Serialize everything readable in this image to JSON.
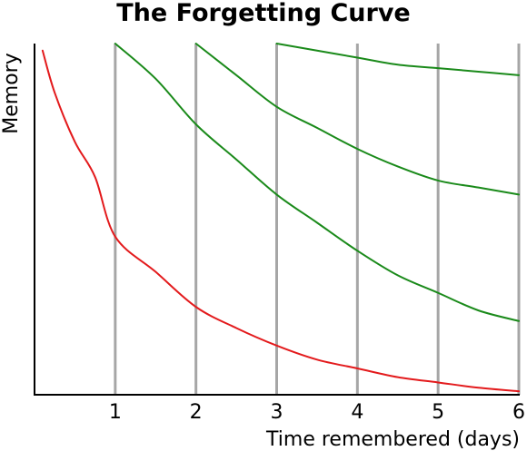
{
  "chart_data": {
    "type": "line",
    "title": "The Forgetting Curve",
    "xlabel": "Time remembered (days)",
    "ylabel": "Memory",
    "xlim": [
      0,
      6
    ],
    "ylim": [
      0,
      100
    ],
    "x_ticks": [
      "1",
      "2",
      "3",
      "4",
      "5",
      "6"
    ],
    "y_ticks": [],
    "grid": "vertical",
    "legend": "none",
    "colors": {
      "axis": "#000000",
      "gridline": "#a6a6a6",
      "first_curve": "#e31a1c",
      "review_curves": "#1a8a1a"
    },
    "series": [
      {
        "color": "#e31a1c",
        "points": [
          [
            0.1,
            98
          ],
          [
            0.25,
            86
          ],
          [
            0.5,
            72
          ],
          [
            0.75,
            62
          ],
          [
            1,
            45
          ],
          [
            1.5,
            35
          ],
          [
            2,
            25
          ],
          [
            2.5,
            19
          ],
          [
            3,
            14
          ],
          [
            3.5,
            10
          ],
          [
            4,
            7.5
          ],
          [
            4.5,
            5
          ],
          [
            5,
            3.5
          ],
          [
            5.5,
            2
          ],
          [
            6,
            1
          ]
        ]
      },
      {
        "color": "#1a8a1a",
        "points": [
          [
            1,
            100
          ],
          [
            1.5,
            90
          ],
          [
            2,
            77
          ],
          [
            2.5,
            67
          ],
          [
            3,
            57
          ],
          [
            3.5,
            49
          ],
          [
            4,
            41
          ],
          [
            4.5,
            34
          ],
          [
            5,
            29
          ],
          [
            5.5,
            24
          ],
          [
            6,
            21
          ]
        ]
      },
      {
        "color": "#1a8a1a",
        "points": [
          [
            2,
            100
          ],
          [
            2.5,
            91
          ],
          [
            3,
            82
          ],
          [
            3.5,
            76
          ],
          [
            4,
            70
          ],
          [
            4.5,
            65
          ],
          [
            5,
            61
          ],
          [
            5.5,
            59
          ],
          [
            6,
            57
          ]
        ]
      },
      {
        "color": "#1a8a1a",
        "points": [
          [
            3,
            100
          ],
          [
            3.5,
            98
          ],
          [
            4,
            96
          ],
          [
            4.5,
            94
          ],
          [
            5,
            93
          ],
          [
            5.5,
            92
          ],
          [
            6,
            91
          ]
        ]
      }
    ]
  }
}
